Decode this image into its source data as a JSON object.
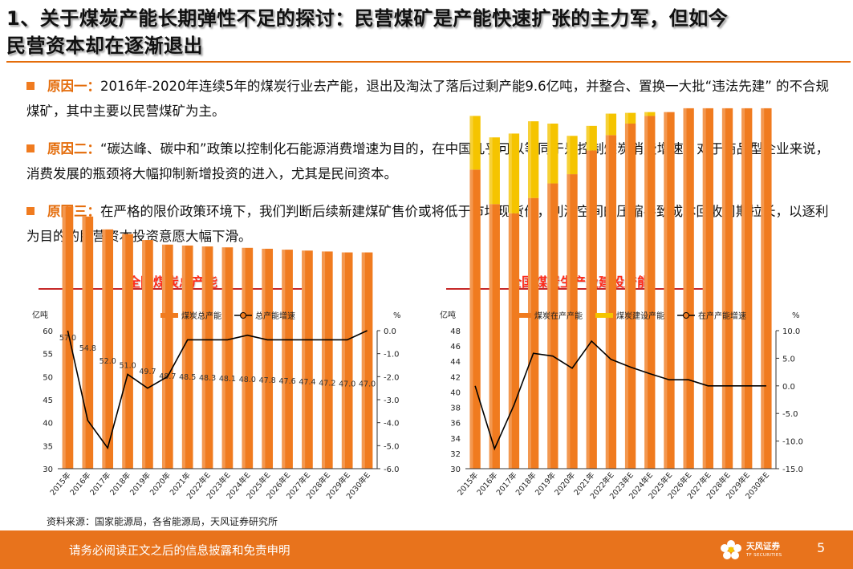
{
  "header": {
    "title_line1": "1、关于煤炭产能长期弹性不足的探讨：民营煤矿是产能快速扩张的主力军，但如今",
    "title_line2": "民营资本却在逐渐退出"
  },
  "bullets": [
    {
      "key": "原因一：",
      "text": "2016年-2020年连续5年的煤炭行业去产能，退出及淘汰了落后过剩产能9.6亿吨，并整合、置换一大批“违法先建” 的不合规煤矿，其中主要以民营煤矿为主。"
    },
    {
      "key": "原因二：",
      "text": "“碳达峰、碳中和”政策以控制化石能源消费增速为目的，在中国几乎可以等同于是控制煤炭消费增速，对于商品型企业来说，消费发展的瓶颈将大幅抑制新增投资的进入，尤其是民间资本。"
    },
    {
      "key": "原因三：",
      "text": "在严格的限价政策环境下，我们判断后续新建煤矿售价或将低于市场现货价，利润空间的压缩导致成本回收周期拉长，以逐利为目的的民营资本投资意愿大幅下滑。"
    }
  ],
  "chart_data": [
    {
      "type": "bar",
      "title": "全国煤炭总产能",
      "left_unit": "亿吨",
      "right_unit": "%",
      "categories": [
        "2015年",
        "2016年",
        "2017年",
        "2018年",
        "2019年",
        "2020年",
        "2021年",
        "2022年E",
        "2023年E",
        "2024年E",
        "2025年E",
        "2026年E",
        "2027年E",
        "2028年E",
        "2029年E",
        "2030年E"
      ],
      "series": [
        {
          "name": "煤炭总产能",
          "kind": "bar",
          "axis": "left",
          "color": "#f07b1f",
          "values": [
            57.0,
            54.8,
            52.0,
            51.0,
            49.7,
            48.7,
            48.5,
            48.3,
            48.1,
            48.0,
            47.8,
            47.6,
            47.4,
            47.2,
            47.0,
            47.0
          ]
        },
        {
          "name": "总产能增速",
          "kind": "line",
          "axis": "right",
          "color": "#000000",
          "values": [
            0.0,
            -3.9,
            -5.1,
            -1.9,
            -2.5,
            -2.0,
            -0.4,
            -0.4,
            -0.4,
            -0.2,
            -0.4,
            -0.4,
            -0.4,
            -0.4,
            -0.4,
            0.0
          ]
        }
      ],
      "bar_labels": [
        "57.0",
        "54.8",
        "52.0",
        "51.0",
        "49.7",
        "48.7",
        "48.5",
        "48.3",
        "48.1",
        "48.0",
        "47.8",
        "47.6",
        "47.4",
        "47.2",
        "47.0",
        "47.0"
      ],
      "left_ticks": [
        "30",
        "35",
        "40",
        "45",
        "50",
        "55",
        "60"
      ],
      "left_range": [
        30,
        60
      ],
      "right_ticks": [
        "-6.0",
        "-5.0",
        "-4.0",
        "-3.0",
        "-2.0",
        "-1.0",
        "0.0"
      ],
      "right_range": [
        -6,
        0
      ],
      "legend": "top-center"
    },
    {
      "type": "bar",
      "title": "全国煤炭生产及建设产能",
      "left_unit": "亿吨",
      "right_unit": "%",
      "categories": [
        "2015年",
        "2016年",
        "2017年",
        "2018年",
        "2019年",
        "2020年",
        "2021年",
        "2022年E",
        "2023年E",
        "2024年E",
        "2025年E",
        "2026年E",
        "2027年E",
        "2028年E",
        "2029年E",
        "2030年E"
      ],
      "series": [
        {
          "name": "煤炭在产产能",
          "kind": "bar",
          "axis": "left",
          "color": "#f07b1f",
          "stacked": true,
          "values": [
            39.0,
            34.5,
            33.3,
            35.3,
            37.2,
            38.4,
            41.5,
            43.5,
            45.0,
            46.0,
            46.5,
            47.0,
            47.0,
            47.0,
            47.0,
            47.0
          ]
        },
        {
          "name": "煤炭建设产能",
          "kind": "bar",
          "axis": "left",
          "color": "#f5c400",
          "stacked": true,
          "values": [
            7.0,
            8.7,
            10.4,
            10.0,
            7.8,
            5.0,
            3.2,
            2.8,
            1.4,
            0.5,
            0.0,
            0.0,
            0.0,
            0.0,
            0.0,
            0.0
          ]
        },
        {
          "name": "在产产能增速",
          "kind": "line",
          "axis": "right",
          "color": "#000000",
          "values": [
            0.0,
            -11.4,
            -3.5,
            5.9,
            5.4,
            3.2,
            8.1,
            4.8,
            3.4,
            2.2,
            1.1,
            1.1,
            0.0,
            0.0,
            0.0,
            0.0
          ]
        }
      ],
      "left_ticks": [
        "30",
        "32",
        "34",
        "36",
        "38",
        "40",
        "42",
        "44",
        "46",
        "48"
      ],
      "left_range": [
        30,
        48
      ],
      "right_ticks": [
        "-15.0",
        "-10.0",
        "-5.0",
        "0.0",
        "5.0",
        "10.0"
      ],
      "right_range": [
        -15,
        10
      ],
      "legend": "top-center"
    }
  ],
  "source": "资料来源：国家能源局，各省能源局，天风证券研究所",
  "footer": {
    "disclaimer": "请务必阅读正文之后的信息披露和免责申明",
    "brand": "天风证券",
    "brand_sub": "TF SECURITIES",
    "page_number": "5"
  }
}
